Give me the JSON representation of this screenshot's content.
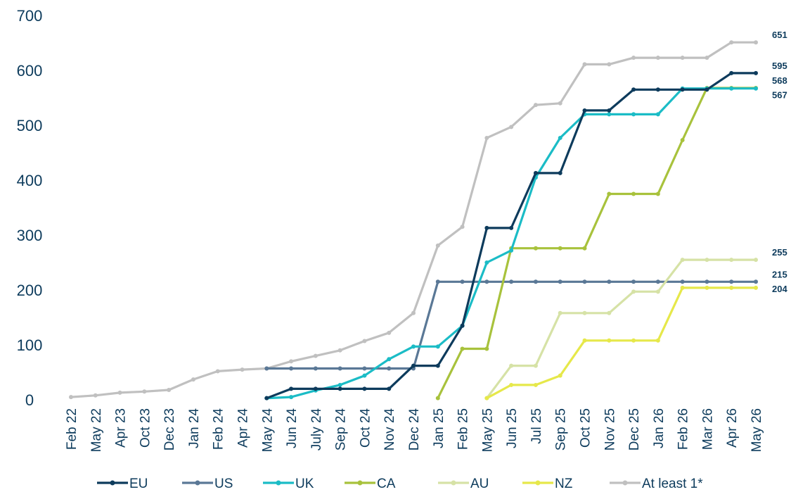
{
  "chart_data": {
    "type": "line",
    "title": "",
    "xlabel": "",
    "ylabel": "",
    "ylim": [
      0,
      700
    ],
    "yticks": [
      0,
      100,
      200,
      300,
      400,
      500,
      600,
      700
    ],
    "grid": false,
    "legend_position": "bottom",
    "categories": [
      "Feb 22",
      "May 22",
      "Apr 23",
      "Oct 23",
      "Dec 23",
      "Jan 24",
      "Feb 24",
      "Apr 24",
      "May 24",
      "Jun 24",
      "July 24",
      "Sep 24",
      "Oct 24",
      "Nov 24",
      "Dec 24",
      "Jan 25",
      "Feb 25",
      "May 25",
      "Jun 25",
      "Jul 25",
      "Sep 25",
      "Oct 25",
      "Nov 25",
      "Dec 25",
      "Jan 26",
      "Feb 26",
      "Mar 26",
      "Apr 26",
      "May 26"
    ],
    "series": [
      {
        "name": "EU",
        "color": "#0d3b5c",
        "values": [
          null,
          null,
          null,
          null,
          null,
          null,
          null,
          null,
          3,
          20,
          20,
          20,
          20,
          20,
          62,
          62,
          135,
          313,
          313,
          413,
          413,
          527,
          527,
          565,
          565,
          565,
          565,
          595,
          595
        ],
        "end_label": "595"
      },
      {
        "name": "US",
        "color": "#5a7896",
        "values": [
          null,
          null,
          null,
          null,
          null,
          null,
          null,
          null,
          57,
          57,
          57,
          57,
          57,
          57,
          57,
          215,
          215,
          215,
          215,
          215,
          215,
          215,
          215,
          215,
          215,
          215,
          215,
          215,
          215
        ],
        "end_label": "215"
      },
      {
        "name": "UK",
        "color": "#1bbcc6",
        "values": [
          null,
          null,
          null,
          null,
          null,
          null,
          null,
          null,
          3,
          5,
          17,
          27,
          44,
          74,
          97,
          97,
          135,
          250,
          272,
          405,
          477,
          520,
          520,
          520,
          520,
          567,
          567,
          567,
          567
        ],
        "end_label": "567"
      },
      {
        "name": "CA",
        "color": "#a8c23c",
        "values": [
          null,
          null,
          null,
          null,
          null,
          null,
          null,
          null,
          null,
          null,
          null,
          null,
          null,
          null,
          null,
          3,
          93,
          93,
          276,
          276,
          276,
          276,
          375,
          375,
          375,
          473,
          568,
          568,
          568
        ],
        "end_label": "568"
      },
      {
        "name": "AU",
        "color": "#d6e2a6",
        "values": [
          null,
          null,
          null,
          null,
          null,
          null,
          null,
          null,
          null,
          null,
          null,
          null,
          null,
          null,
          null,
          null,
          null,
          3,
          62,
          62,
          158,
          158,
          158,
          197,
          197,
          255,
          255,
          255,
          255
        ],
        "end_label": "255"
      },
      {
        "name": "NZ",
        "color": "#e6e84a",
        "values": [
          null,
          null,
          null,
          null,
          null,
          null,
          null,
          null,
          null,
          null,
          null,
          null,
          null,
          null,
          null,
          null,
          null,
          3,
          27,
          27,
          44,
          108,
          108,
          108,
          108,
          204,
          204,
          204,
          204
        ],
        "end_label": "204"
      },
      {
        "name": "At least 1*",
        "color": "#c0c0c0",
        "values": [
          5,
          8,
          13,
          15,
          18,
          37,
          52,
          55,
          57,
          70,
          80,
          90,
          107,
          122,
          158,
          281,
          315,
          477,
          497,
          537,
          540,
          611,
          611,
          623,
          623,
          623,
          623,
          651,
          651
        ],
        "end_label": "651"
      }
    ],
    "draw_order": [
      6,
      1,
      3,
      4,
      5,
      2,
      0
    ]
  }
}
